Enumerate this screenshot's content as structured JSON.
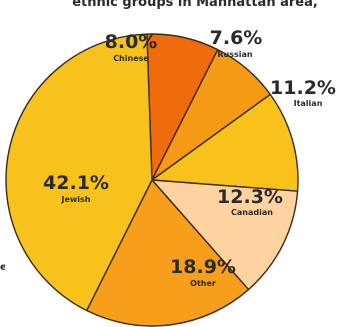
{
  "chart_data": {
    "type": "pie",
    "title": "",
    "title_fragment": "ethnic groups in Manhattan area,",
    "left_edge_fragment": "e",
    "start_angle_deg": -92,
    "direction": "clockwise",
    "slices": [
      {
        "name": "Chinese",
        "percent_label": "8.0%",
        "value": 8.0,
        "color": "#ef6b0c"
      },
      {
        "name": "Russian",
        "percent_label": "7.6%",
        "value": 7.6,
        "color": "#f59a14"
      },
      {
        "name": "Italian",
        "percent_label": "11.2%",
        "value": 11.2,
        "color": "#f9c21a"
      },
      {
        "name": "Canadian",
        "percent_label": "12.3%",
        "value": 12.3,
        "color": "#ffd39f"
      },
      {
        "name": "Other",
        "percent_label": "18.9%",
        "value": 18.9,
        "color": "#f79e1b"
      },
      {
        "name": "Jewish",
        "percent_label": "42.1%",
        "value": 42.1,
        "color": "#f6c21b"
      }
    ],
    "colors": {
      "stroke": "#3a2a1a",
      "text": "#2a2a2a"
    }
  }
}
